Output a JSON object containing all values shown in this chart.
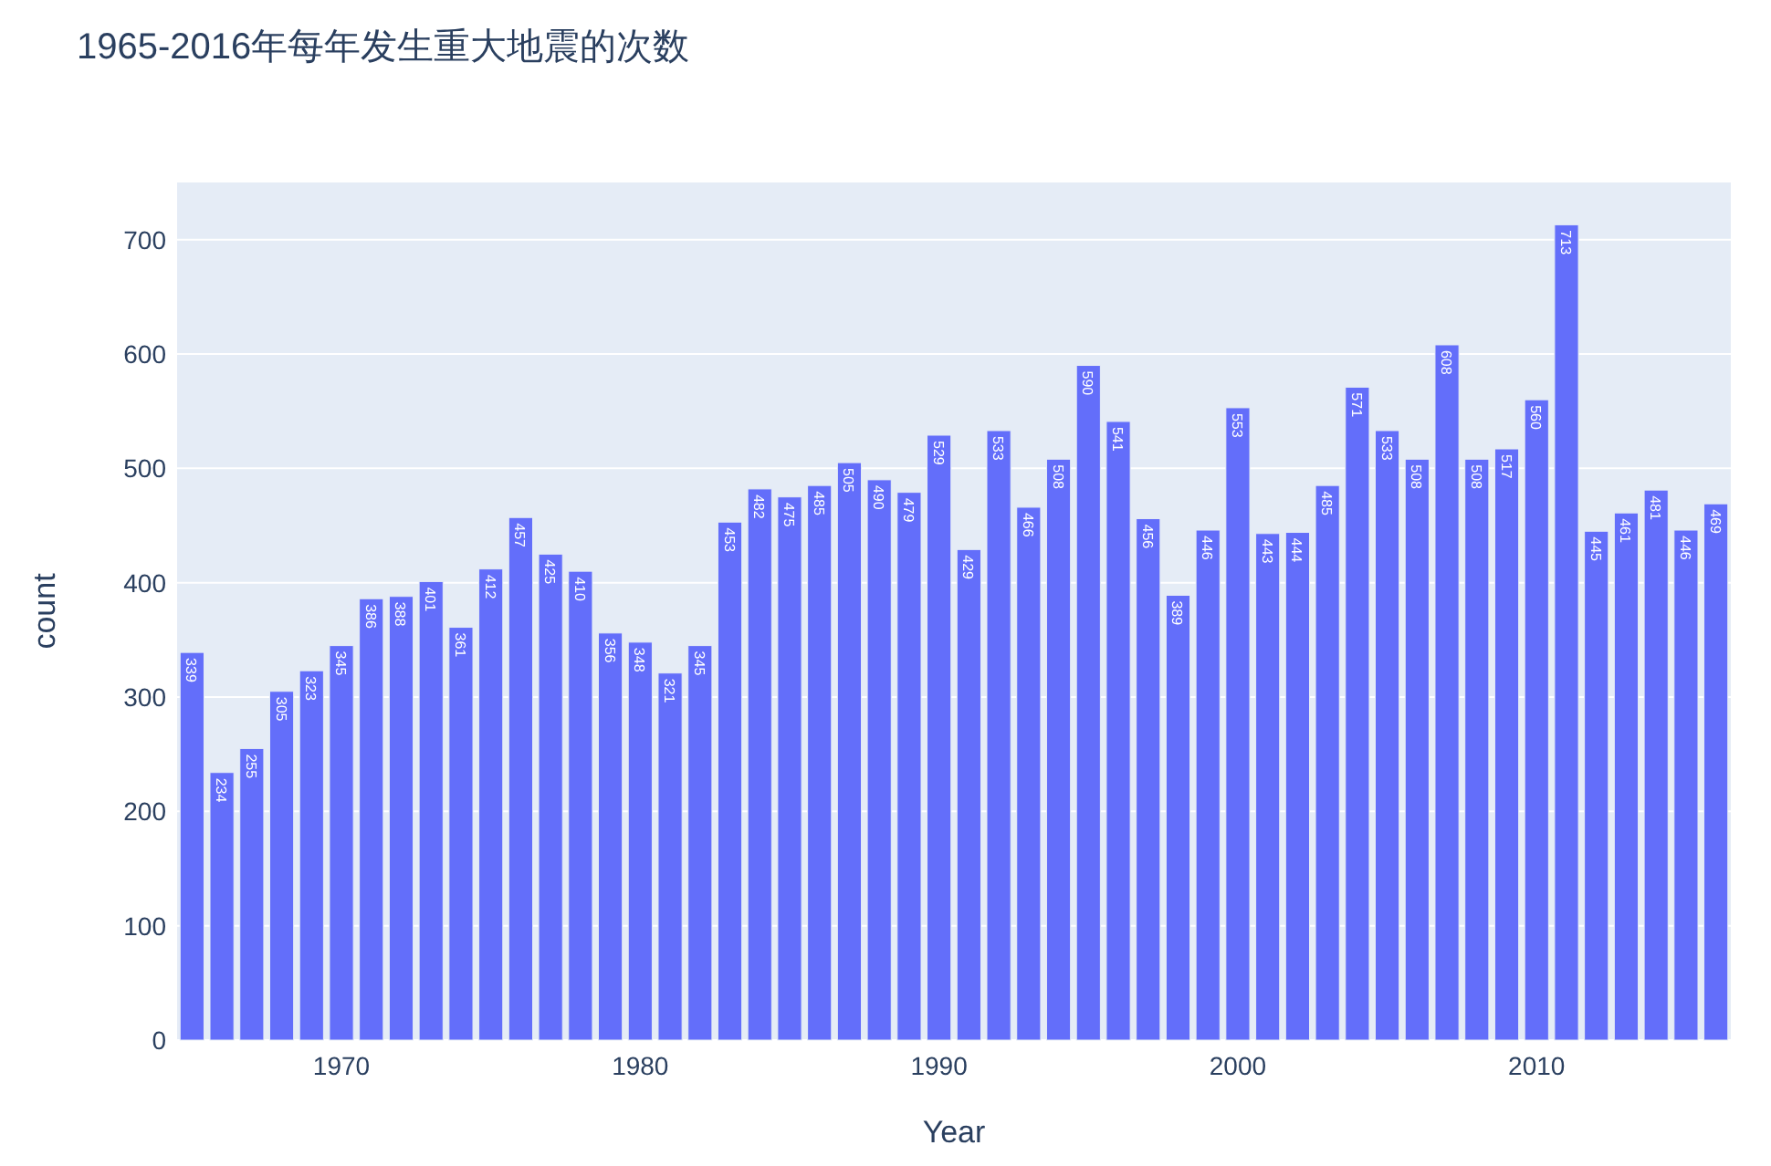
{
  "chart_data": {
    "type": "bar",
    "title": "1965-2016年每年发生重大地震的次数",
    "xlabel": "Year",
    "ylabel": "count",
    "x": [
      1965,
      1966,
      1967,
      1968,
      1969,
      1970,
      1971,
      1972,
      1973,
      1974,
      1975,
      1976,
      1977,
      1978,
      1979,
      1980,
      1981,
      1982,
      1983,
      1984,
      1985,
      1986,
      1987,
      1988,
      1989,
      1990,
      1991,
      1992,
      1993,
      1994,
      1995,
      1996,
      1997,
      1998,
      1999,
      2000,
      2001,
      2002,
      2003,
      2004,
      2005,
      2006,
      2007,
      2008,
      2009,
      2010,
      2011,
      2012,
      2013,
      2014,
      2015,
      2016
    ],
    "series": [
      {
        "color": "#636efa",
        "values": [
          339,
          234,
          255,
          305,
          323,
          345,
          386,
          388,
          401,
          361,
          412,
          457,
          425,
          410,
          356,
          348,
          321,
          345,
          453,
          482,
          475,
          485,
          505,
          490,
          479,
          529,
          429,
          533,
          466,
          508,
          590,
          541,
          456,
          389,
          446,
          553,
          443,
          444,
          485,
          571,
          533,
          508,
          608,
          508,
          517,
          560,
          713,
          445,
          461,
          481,
          446,
          469
        ]
      }
    ],
    "xlim": [
      1964.5,
      2016.5
    ],
    "xticks": [
      1970,
      1980,
      1990,
      2000,
      2010
    ],
    "ylim": [
      0,
      750
    ],
    "yticks": [
      0,
      100,
      200,
      300,
      400,
      500,
      600,
      700
    ],
    "grid": "y",
    "data_labels": true
  }
}
